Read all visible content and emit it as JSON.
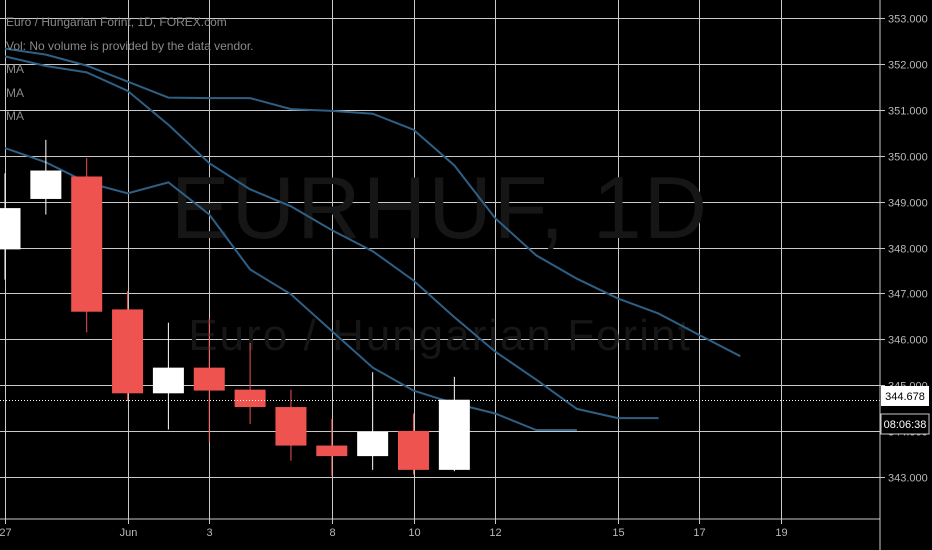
{
  "legend": {
    "title": "Euro / Hungarian Forint, 1D, FOREX.com",
    "vol": "Vol: No volume is provided by the data vendor.",
    "ma": [
      "MA",
      "MA",
      "MA"
    ]
  },
  "watermark": {
    "ticker": "EURHUF, 1D",
    "description": "Euro / Hungarian Forint"
  },
  "price_label": {
    "value": "344.678",
    "bg": "#ffffff",
    "fg": "#000000"
  },
  "countdown_label": {
    "value": "08:06:38"
  },
  "colors": {
    "background": "#000000",
    "grid": "#c9c9c9",
    "up": "#ffffff",
    "down": "#ef5350",
    "wick": "#ffffff",
    "ma": "#2e5f85",
    "axis_text": "#b8b8b8"
  },
  "chart_data": {
    "type": "candlestick",
    "title": "Euro / Hungarian Forint, 1D, FOREX.com",
    "ylim": [
      342.1,
      353.4
    ],
    "y_ticks": [
      "343.000",
      "344.000",
      "345.000",
      "346.000",
      "347.000",
      "348.000",
      "349.000",
      "350.000",
      "351.000",
      "352.000",
      "353.000"
    ],
    "x_ticks": [
      {
        "label": "27",
        "day": 0
      },
      {
        "label": "Jun",
        "day": 3
      },
      {
        "label": "3",
        "day": 5
      },
      {
        "label": "8",
        "day": 8
      },
      {
        "label": "10",
        "day": 10
      },
      {
        "label": "12",
        "day": 12
      },
      {
        "label": "15",
        "day": 15
      },
      {
        "label": "17",
        "day": 17
      },
      {
        "label": "19",
        "day": 19
      }
    ],
    "candles": [
      {
        "day": 0,
        "open": 347.96,
        "high": 349.62,
        "low": 347.3,
        "close": 348.86
      },
      {
        "day": 1,
        "open": 349.06,
        "high": 350.35,
        "low": 348.72,
        "close": 349.68
      },
      {
        "day": 2,
        "open": 349.55,
        "high": 349.95,
        "low": 346.15,
        "close": 346.6
      },
      {
        "day": 3,
        "open": 346.65,
        "high": 347.05,
        "low": 344.65,
        "close": 344.82
      },
      {
        "day": 4,
        "open": 344.82,
        "high": 346.36,
        "low": 344.03,
        "close": 345.38
      },
      {
        "day": 5,
        "open": 345.38,
        "high": 346.45,
        "low": 343.75,
        "close": 344.88
      },
      {
        "day": 6,
        "open": 344.9,
        "high": 345.92,
        "low": 344.15,
        "close": 344.52
      },
      {
        "day": 7,
        "open": 344.52,
        "high": 344.9,
        "low": 343.35,
        "close": 343.68
      },
      {
        "day": 8,
        "open": 343.68,
        "high": 344.26,
        "low": 343.02,
        "close": 343.45
      },
      {
        "day": 9,
        "open": 343.45,
        "high": 345.28,
        "low": 343.15,
        "close": 343.98
      },
      {
        "day": 10,
        "open": 344.0,
        "high": 344.38,
        "low": 343.05,
        "close": 343.15
      },
      {
        "day": 11,
        "open": 343.15,
        "high": 345.18,
        "low": 343.12,
        "close": 344.68
      }
    ],
    "series": [
      {
        "values": [
          [
            0,
            350.17
          ],
          [
            1,
            349.86
          ],
          [
            2,
            349.42
          ],
          [
            3,
            349.18
          ],
          [
            4,
            349.42
          ],
          [
            5,
            348.72
          ],
          [
            6,
            347.52
          ],
          [
            7,
            346.98
          ],
          [
            8,
            346.18
          ],
          [
            9,
            345.38
          ],
          [
            10,
            344.88
          ],
          [
            11,
            344.6
          ],
          [
            12,
            344.38
          ],
          [
            13,
            344.02
          ],
          [
            14,
            344.02
          ]
        ]
      },
      {
        "values": [
          [
            0,
            352.17
          ],
          [
            1,
            351.96
          ],
          [
            2,
            351.82
          ],
          [
            3,
            351.42
          ],
          [
            4,
            350.68
          ],
          [
            5,
            349.84
          ],
          [
            6,
            349.27
          ],
          [
            7,
            348.9
          ],
          [
            8,
            348.38
          ],
          [
            9,
            347.92
          ],
          [
            10,
            347.28
          ],
          [
            11,
            346.48
          ],
          [
            12,
            345.73
          ],
          [
            13,
            345.12
          ],
          [
            14,
            344.48
          ],
          [
            15,
            344.28
          ],
          [
            16,
            344.28
          ]
        ]
      },
      {
        "values": [
          [
            0,
            352.34
          ],
          [
            1,
            352.21
          ],
          [
            2,
            351.97
          ],
          [
            3,
            351.62
          ],
          [
            4,
            351.27
          ],
          [
            5,
            351.26
          ],
          [
            6,
            351.26
          ],
          [
            7,
            351.02
          ],
          [
            8,
            350.98
          ],
          [
            9,
            350.92
          ],
          [
            10,
            350.57
          ],
          [
            11,
            349.79
          ],
          [
            12,
            348.64
          ],
          [
            13,
            347.83
          ],
          [
            14,
            347.32
          ],
          [
            15,
            346.89
          ],
          [
            16,
            346.56
          ],
          [
            17,
            346.09
          ],
          [
            18,
            345.63
          ]
        ]
      }
    ]
  }
}
